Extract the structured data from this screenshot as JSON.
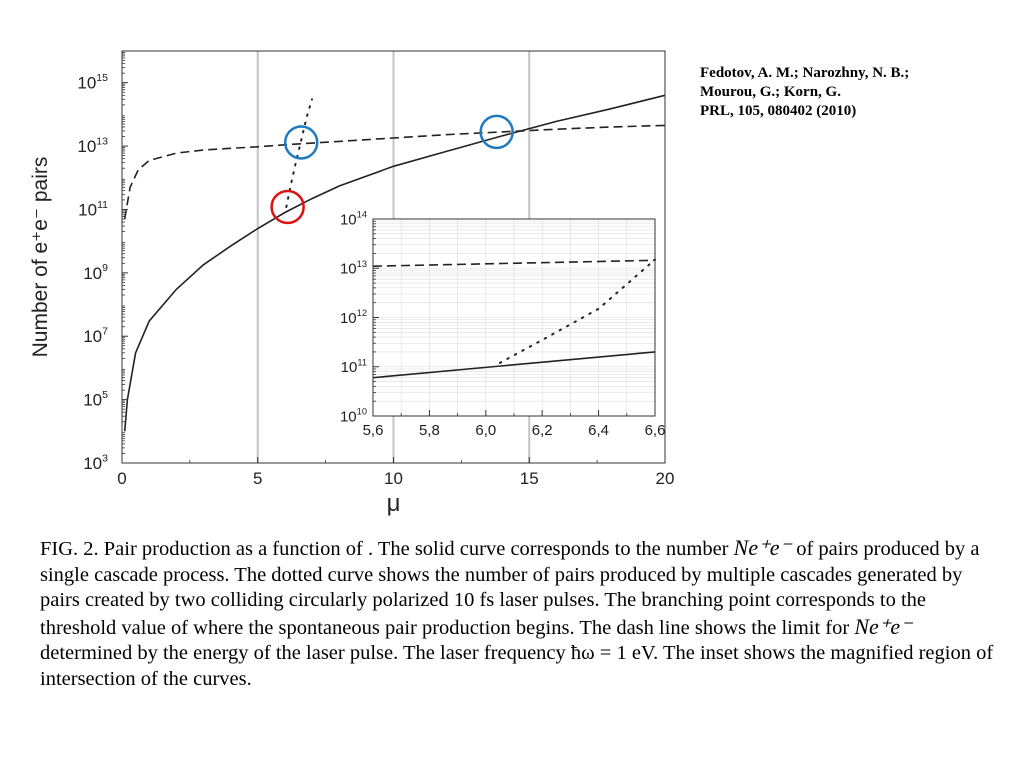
{
  "reference": {
    "line1": "Fedotov, A. M.; Narozhny, N. B.;",
    "line2": "Mourou, G.; Korn, G.",
    "line3": "PRL, 105, 080402 (2010)"
  },
  "caption": {
    "p1": "FIG. 2. Pair production as a function of . The solid curve corresponds to the number ",
    "math1": "Ne⁺e⁻",
    "p2": " of pairs produced by a single cascade process. The dotted curve shows the number of pairs produced by multiple cascades generated by pairs created by two colliding circularly polarized 10 fs laser pulses. The branching point corresponds to the threshold value of where the spontaneous pair production begins. The dash line shows the limit for ",
    "math2": "Ne⁺e⁻",
    "p3": " determined by the energy of the laser pulse. The laser frequency ħω = 1 eV. The inset shows the magnified region of intersection of the curves."
  },
  "chart_data": [
    {
      "type": "line",
      "title": "",
      "xlabel": "μ",
      "ylabel": "Number of e⁺e⁻ pairs",
      "xlim": [
        0,
        20
      ],
      "ylim": [
        1000.0,
        1e+16
      ],
      "yscale": "log",
      "grid": "major vertical lines at x = 5, 10, 15",
      "x_ticks": [
        "0",
        "5",
        "10",
        "15",
        "20"
      ],
      "y_ticks": [
        {
          "base": "10",
          "exp": "3"
        },
        {
          "base": "10",
          "exp": "5"
        },
        {
          "base": "10",
          "exp": "7"
        },
        {
          "base": "10",
          "exp": "9"
        },
        {
          "base": "10",
          "exp": "11"
        },
        {
          "base": "10",
          "exp": "13"
        },
        {
          "base": "10",
          "exp": "15"
        }
      ],
      "series": [
        {
          "style": "solid",
          "x": [
            0.1,
            0.2,
            0.5,
            1,
            2,
            3,
            4,
            5,
            6,
            7,
            8,
            10,
            12,
            14,
            16,
            18,
            20
          ],
          "y": [
            10000.0,
            100000.0,
            3000000.0,
            30000000.0,
            300000000.0,
            1800000000.0,
            7000000000.0,
            25000000000.0,
            80000000000.0,
            220000000000.0,
            550000000000.0,
            2300000000000.0,
            7000000000000.0,
            21000000000000.0,
            60000000000000.0,
            150000000000000.0,
            400000000000000.0
          ]
        },
        {
          "style": "dashed",
          "x": [
            0.1,
            0.3,
            0.6,
            1,
            2,
            3,
            4,
            5,
            6,
            8,
            10,
            12,
            14,
            16,
            18,
            20
          ],
          "y": [
            50000000000.0,
            500000000000.0,
            1800000000000.0,
            3500000000000.0,
            6000000000000.0,
            7500000000000.0,
            8500000000000.0,
            9500000000000.0,
            11000000000000.0,
            14000000000000.0,
            18000000000000.0,
            23000000000000.0,
            28000000000000.0,
            34000000000000.0,
            40000000000000.0,
            45000000000000.0
          ]
        },
        {
          "style": "dotted",
          "x": [
            6.05,
            6.2,
            6.4,
            6.6,
            6.8,
            7.0
          ],
          "y": [
            120000000000.0,
            500000000000.0,
            3000000000000.0,
            15000000000000.0,
            80000000000000.0,
            300000000000000.0
          ]
        }
      ],
      "annotations": [
        {
          "shape": "circle",
          "color": "#dd1111",
          "x": 6.1,
          "y": 120000000000.0
        },
        {
          "shape": "circle",
          "color": "#1e7ac2",
          "x": 6.6,
          "y": 13000000000000.0
        },
        {
          "shape": "circle",
          "color": "#1e7ac2",
          "x": 13.8,
          "y": 28000000000000.0
        }
      ]
    },
    {
      "type": "line",
      "title": "",
      "xlabel": "",
      "ylabel": "",
      "xlim": [
        5.6,
        6.6
      ],
      "ylim": [
        10000000000.0,
        100000000000000.0
      ],
      "yscale": "log",
      "grid": "fine gridlines",
      "x_ticks": [
        "5,6",
        "5,8",
        "6,0",
        "6,2",
        "6,4",
        "6,6"
      ],
      "y_ticks": [
        {
          "base": "10",
          "exp": "10"
        },
        {
          "base": "10",
          "exp": "11"
        },
        {
          "base": "10",
          "exp": "12"
        },
        {
          "base": "10",
          "exp": "13"
        },
        {
          "base": "10",
          "exp": "14"
        }
      ],
      "series": [
        {
          "style": "solid",
          "x": [
            5.6,
            6.6
          ],
          "y": [
            60000000000.0,
            200000000000.0
          ]
        },
        {
          "style": "dashed",
          "x": [
            5.6,
            6.6
          ],
          "y": [
            11000000000000.0,
            14500000000000.0
          ]
        },
        {
          "style": "dotted",
          "x": [
            6.05,
            6.2,
            6.4,
            6.6
          ],
          "y": [
            120000000000.0,
            350000000000.0,
            1500000000000.0,
            15000000000000.0
          ]
        }
      ]
    }
  ]
}
